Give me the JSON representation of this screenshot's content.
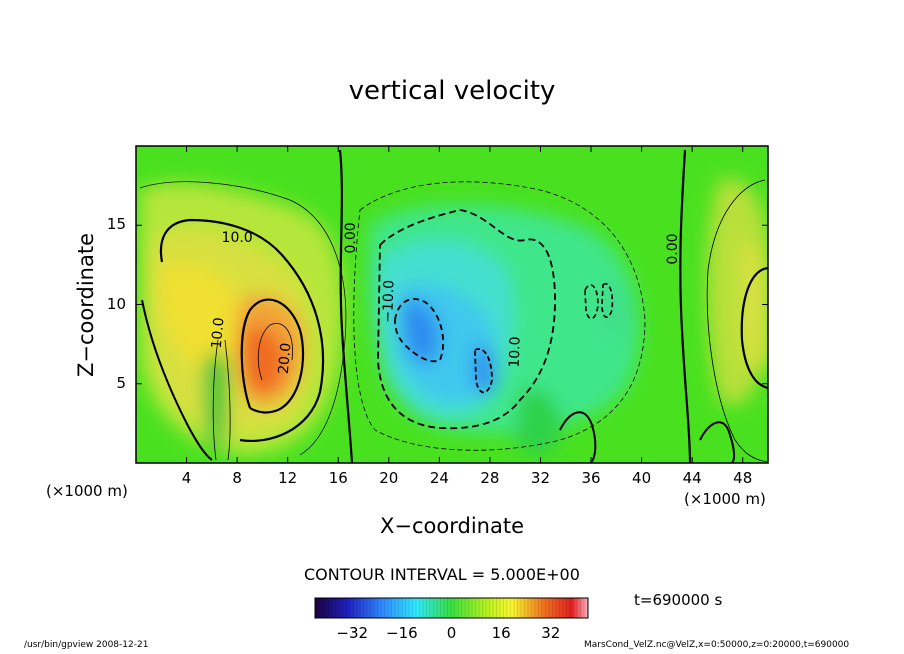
{
  "chart_data": {
    "type": "contour",
    "title": "vertical velocity",
    "xlabel": "X−coordinate",
    "ylabel": "Z−coordinate",
    "x_unit_left": "(×1000 m)",
    "x_unit_right": "(×1000 m)",
    "xlim": [
      0,
      50
    ],
    "ylim": [
      0,
      20
    ],
    "xticks": [
      4,
      8,
      12,
      16,
      20,
      24,
      28,
      32,
      36,
      40,
      44,
      48
    ],
    "yticks": [
      5,
      10,
      15
    ],
    "contour_labels": [
      {
        "text": "10.0",
        "x": 8,
        "y": 14.2,
        "angle": 0
      },
      {
        "text": "10.0",
        "x": 6.5,
        "y": 8.2,
        "angle": -85
      },
      {
        "text": "20.0",
        "x": 11.8,
        "y": 6.6,
        "angle": -85
      },
      {
        "text": "0.00",
        "x": 17,
        "y": 14.2,
        "angle": -90
      },
      {
        "text": "−10.0",
        "x": 20,
        "y": 10.2,
        "angle": -88
      },
      {
        "text": "10.0",
        "x": 30,
        "y": 7,
        "angle": -88
      },
      {
        "text": "0.00",
        "x": 42.5,
        "y": 13.5,
        "angle": -90
      }
    ],
    "contour_interval": "CONTOUR INTERVAL = 5.000E+00",
    "colorbar": {
      "ticks": [
        -32,
        -16,
        0,
        16,
        32
      ],
      "tick_labels": [
        "−32",
        "−16",
        "0",
        "16",
        "32"
      ],
      "range": [
        -44,
        44
      ]
    },
    "time_label": "t=690000 s"
  },
  "footer": {
    "left": "/usr/bin/gpview   2008-12-21",
    "right": "MarsCond_VelZ.nc@VelZ,x=0:50000,z=0:20000,t=690000"
  }
}
